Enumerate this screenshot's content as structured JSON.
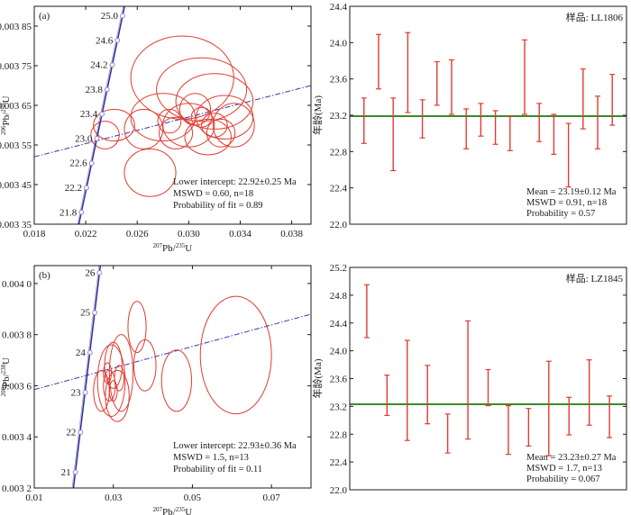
{
  "chart_data": [
    {
      "id": "a",
      "type": "scatter",
      "panel_label": "(a)",
      "xlabel_sup": "207",
      "xlabel_main": "Pb/",
      "xlabel_sup2": "235",
      "xlabel_end": "U",
      "ylabel_sup": "206",
      "ylabel_main": "Pb/",
      "ylabel_sup2": "238",
      "ylabel_end": "U",
      "xlim": [
        0.018,
        0.0395
      ],
      "ylim": [
        0.00335,
        0.0039
      ],
      "xticks": [
        0.018,
        0.022,
        0.026,
        0.03,
        0.034,
        0.038
      ],
      "xtick_labels": [
        "0.018",
        "0.022",
        "0.026",
        "0.030",
        "0.034",
        "0.038"
      ],
      "yticks": [
        0.00335,
        0.00345,
        0.00355,
        0.00365,
        0.00375,
        0.00385
      ],
      "ytick_labels": [
        "0.003 35",
        "0.003 45",
        "0.003 55",
        "0.003 65",
        "0.003 75",
        "0.003 85"
      ],
      "concordia_ages": [
        "21.8",
        "22.2",
        "22.6",
        "23.0",
        "23.4",
        "23.8",
        "24.2",
        "24.6",
        "25.0"
      ],
      "concordia_points": [
        [
          0.02166,
          0.00338
        ],
        [
          0.02206,
          0.003442
        ],
        [
          0.02246,
          0.003504
        ],
        [
          0.02286,
          0.003566
        ],
        [
          0.02326,
          0.003628
        ],
        [
          0.02366,
          0.00369
        ],
        [
          0.02406,
          0.003752
        ],
        [
          0.02446,
          0.003814
        ],
        [
          0.02486,
          0.003876
        ]
      ],
      "discordia_line": [
        [
          0.018,
          0.00352
        ],
        [
          0.0395,
          0.0037
        ]
      ],
      "ellipses": [
        [
          0.0235,
          0.003575,
          0.0011,
          3.5e-05,
          0
        ],
        [
          0.0242,
          0.0036,
          0.0016,
          4e-05,
          0
        ],
        [
          0.028,
          0.00362,
          0.0025,
          6e-05,
          0
        ],
        [
          0.0295,
          0.00372,
          0.004,
          0.000105,
          0
        ],
        [
          0.031,
          0.00369,
          0.0035,
          8e-05,
          0
        ],
        [
          0.032,
          0.00366,
          0.003,
          7e-05,
          0
        ],
        [
          0.03,
          0.0036,
          0.002,
          5.5e-05,
          0
        ],
        [
          0.0315,
          0.00357,
          0.0018,
          4.5e-05,
          0
        ],
        [
          0.0265,
          0.00359,
          0.0015,
          5e-05,
          0
        ],
        [
          0.029,
          0.00358,
          0.0013,
          4e-05,
          0
        ],
        [
          0.0328,
          0.00362,
          0.0022,
          5.5e-05,
          0
        ],
        [
          0.0335,
          0.0036,
          0.0016,
          5.5e-05,
          0
        ],
        [
          0.0305,
          0.00364,
          0.0012,
          4e-05,
          0
        ],
        [
          0.027,
          0.00348,
          0.002,
          6e-05,
          0
        ],
        [
          0.032,
          0.0036,
          0.001,
          3e-05,
          0
        ],
        [
          0.0285,
          0.00361,
          0.0009,
          3e-05,
          0
        ],
        [
          0.031,
          0.00362,
          0.0008,
          2.5e-05,
          0
        ],
        [
          0.0325,
          0.00358,
          0.0011,
          3.5e-05,
          0
        ]
      ],
      "annotations": [
        "Lower intercept: 22.92±0.25 Ma",
        "MSWD = 0.60, n=18",
        "Probability of fit = 0.89"
      ],
      "colors": {
        "ellipse": "#e03c31",
        "concordia": "#2c2c9a",
        "marker": "#8a8ad0",
        "discordia": "#3a3ab0"
      }
    },
    {
      "id": "b",
      "type": "scatter",
      "panel_label": "(b)",
      "xlabel_sup": "207",
      "xlabel_main": "Pb/",
      "xlabel_sup2": "235",
      "xlabel_end": "U",
      "ylabel_sup": "206",
      "ylabel_main": "Pb/",
      "ylabel_sup2": "238",
      "ylabel_end": "U",
      "xlim": [
        0.01,
        0.08
      ],
      "ylim": [
        0.0032,
        0.00407
      ],
      "xticks": [
        0.01,
        0.03,
        0.05,
        0.07
      ],
      "xtick_labels": [
        "0.01",
        "0.03",
        "0.05",
        "0.07"
      ],
      "yticks": [
        0.0032,
        0.0034,
        0.0036,
        0.0038,
        0.004
      ],
      "ytick_labels": [
        "0.003 2",
        "0.003 4",
        "0.003 6",
        "0.003 8",
        "0.004 0"
      ],
      "concordia_ages": [
        "21",
        "22",
        "23",
        "24",
        "25",
        "26"
      ],
      "concordia_points": [
        [
          0.0204,
          0.003262
        ],
        [
          0.0217,
          0.003418
        ],
        [
          0.0229,
          0.003574
        ],
        [
          0.0241,
          0.00373
        ],
        [
          0.0253,
          0.003886
        ],
        [
          0.0265,
          0.004042
        ]
      ],
      "discordia_line": [
        [
          0.01,
          0.003585
        ],
        [
          0.08,
          0.00388
        ]
      ],
      "ellipses": [
        [
          0.027,
          0.00358,
          0.002,
          8e-05,
          0
        ],
        [
          0.0295,
          0.00362,
          0.0035,
          0.00014,
          0
        ],
        [
          0.031,
          0.00356,
          0.003,
          0.0001,
          0
        ],
        [
          0.032,
          0.00365,
          0.003,
          0.00015,
          0
        ],
        [
          0.03,
          0.00368,
          0.0022,
          9e-05,
          0
        ],
        [
          0.036,
          0.00383,
          0.0023,
          0.0001,
          0
        ],
        [
          0.038,
          0.00368,
          0.0028,
          0.0001,
          0
        ],
        [
          0.046,
          0.00362,
          0.0038,
          0.00012,
          0
        ],
        [
          0.061,
          0.00372,
          0.009,
          0.00023,
          0
        ],
        [
          0.029,
          0.0036,
          0.0015,
          6e-05,
          0
        ],
        [
          0.0315,
          0.00363,
          0.0012,
          5e-05,
          0
        ],
        [
          0.03,
          0.00358,
          0.001,
          4e-05,
          0
        ],
        [
          0.0285,
          0.00365,
          0.001,
          4e-05,
          0
        ]
      ],
      "annotations": [
        "Lower intercept: 22.93±0.36 Ma",
        "MSWD = 1.5, n=13",
        "Probability of fit = 0.11"
      ],
      "colors": {
        "ellipse": "#e03c31",
        "concordia": "#2c2c9a",
        "marker": "#8a8ad0",
        "discordia": "#3a3ab0"
      }
    },
    {
      "id": "c",
      "type": "bar",
      "sample_label": "样品: LL1806",
      "ylabel": "年龄(Ma)",
      "ylim": [
        22.0,
        24.4
      ],
      "yticks": [
        22.0,
        22.4,
        22.8,
        23.2,
        23.6,
        24.0,
        24.4
      ],
      "ytick_labels": [
        "22.0",
        "22.4",
        "22.8",
        "23.2",
        "23.6",
        "24.0",
        "24.4"
      ],
      "mean": 23.19,
      "error_bars": [
        [
          22.89,
          23.39
        ],
        [
          23.49,
          24.09
        ],
        [
          22.59,
          23.39
        ],
        [
          23.23,
          24.11
        ],
        [
          22.95,
          23.37
        ],
        [
          23.31,
          23.79
        ],
        [
          23.21,
          23.81
        ],
        [
          22.83,
          23.27
        ],
        [
          22.97,
          23.33
        ],
        [
          22.88,
          23.25
        ],
        [
          22.81,
          23.19
        ],
        [
          23.21,
          24.03
        ],
        [
          22.91,
          23.33
        ],
        [
          22.77,
          23.21
        ],
        [
          22.41,
          23.11
        ],
        [
          23.05,
          23.71
        ],
        [
          22.83,
          23.41
        ],
        [
          23.09,
          23.65
        ]
      ],
      "annotations": [
        "Mean = 23.19±0.12  Ma",
        "MSWD = 0.91, n=18",
        "Probability = 0.57"
      ],
      "colors": {
        "bar": "#e03c31",
        "mean_line": "#3a8a2a"
      }
    },
    {
      "id": "d",
      "type": "bar",
      "sample_label": "样品: LZ1845",
      "ylabel": "年龄(Ma)",
      "ylim": [
        22.0,
        25.2
      ],
      "yticks": [
        22.0,
        22.4,
        22.8,
        23.2,
        23.6,
        24.0,
        24.4,
        24.8,
        25.2
      ],
      "ytick_labels": [
        "22.0",
        "22.4",
        "22.8",
        "23.2",
        "23.6",
        "24.0",
        "24.4",
        "24.8",
        "25.2"
      ],
      "mean": 23.23,
      "error_bars": [
        [
          24.19,
          24.95
        ],
        [
          23.07,
          23.65
        ],
        [
          22.71,
          24.15
        ],
        [
          22.95,
          23.79
        ],
        [
          22.53,
          23.09
        ],
        [
          22.73,
          24.43
        ],
        [
          23.21,
          23.73
        ],
        [
          22.51,
          23.21
        ],
        [
          22.63,
          23.17
        ],
        [
          22.49,
          23.85
        ],
        [
          22.79,
          23.33
        ],
        [
          22.93,
          23.87
        ],
        [
          22.75,
          23.35
        ]
      ],
      "annotations": [
        "Mean = 23.23±0.27  Ma",
        "MSWD = 1.7, n=13",
        "Probability = 0.067"
      ],
      "colors": {
        "bar": "#e03c31",
        "mean_line": "#3a8a2a"
      }
    }
  ]
}
